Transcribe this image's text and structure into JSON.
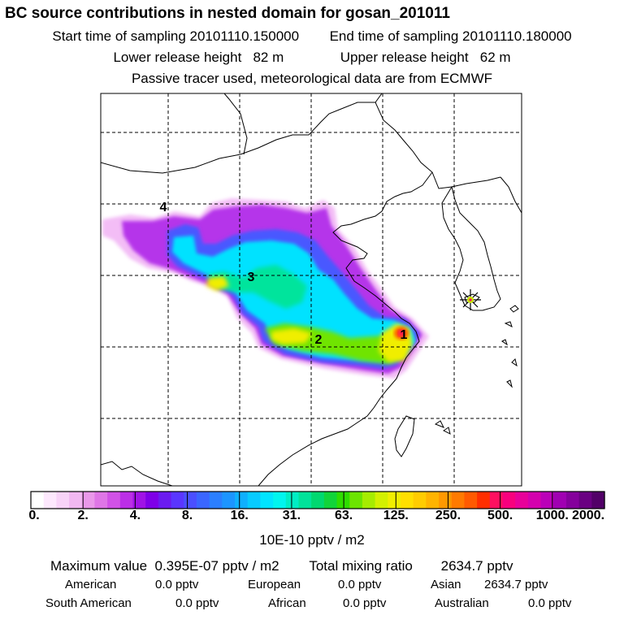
{
  "header": {
    "title": "BC  source contributions in nested domain for gosan_201011",
    "start_label": "Start time of sampling",
    "start_value": "20101110.150000",
    "end_label": "End time of sampling",
    "end_value": "20101110.180000",
    "lower_label": "Lower release height",
    "lower_value": "82 m",
    "upper_label": "Upper release height",
    "upper_value": "62 m",
    "tracer_note": "Passive tracer used, meteorological data are from ECMWF"
  },
  "map": {
    "grid": "dashed",
    "receptor_marker": "star-icon",
    "source_markers": [
      "1",
      "2",
      "3",
      "4"
    ]
  },
  "colorbar": {
    "labels": [
      "0.",
      "2.",
      "4.",
      "8.",
      "16.",
      "31.",
      "63.",
      "125.",
      "250.",
      "500.",
      "1000.",
      "2000."
    ],
    "colors": [
      "#ffffff",
      "#fde8fd",
      "#f8d3f8",
      "#f2b8f2",
      "#ea98ea",
      "#df76e6",
      "#d152e6",
      "#bb2fe6",
      "#a013e6",
      "#7f00e8",
      "#6b1bf0",
      "#5a36ff",
      "#4a4fff",
      "#3a66ff",
      "#2b7fff",
      "#1c95ff",
      "#0fb0ff",
      "#08cbff",
      "#00e4ff",
      "#00f5ee",
      "#00edc4",
      "#00e29a",
      "#00d870",
      "#11d43a",
      "#2fdd00",
      "#6ce400",
      "#a6ec00",
      "#d3f000",
      "#f0ee00",
      "#ffdf00",
      "#ffcc00",
      "#ffb400",
      "#ff9900",
      "#ff7a00",
      "#ff5a00",
      "#ff2f00",
      "#ff1060",
      "#f8007e",
      "#e8009a",
      "#d400ae",
      "#bb00b8",
      "#a000b2",
      "#85009c",
      "#6a0082",
      "#520068"
    ],
    "unit": "10E-10 pptv / m2"
  },
  "summary": {
    "max_label": "Maximum value",
    "max_value": "0.395E-07 pptv / m2",
    "total_label": "Total mixing ratio",
    "total_value": "2634.7 pptv"
  },
  "regions": [
    {
      "name": "American",
      "value": "0.0 pptv"
    },
    {
      "name": "European",
      "value": "0.0 pptv"
    },
    {
      "name": "Asian",
      "value": "2634.7 pptv"
    },
    {
      "name": "South American",
      "value": "0.0 pptv"
    },
    {
      "name": "African",
      "value": "0.0 pptv"
    },
    {
      "name": "Australian",
      "value": "0.0 pptv"
    }
  ]
}
